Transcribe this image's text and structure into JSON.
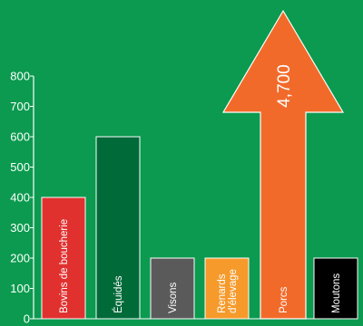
{
  "chart_data": {
    "type": "bar",
    "title": "",
    "xlabel": "",
    "ylabel": "",
    "ylim": [
      0,
      800
    ],
    "yticks": [
      "0",
      "100",
      "200",
      "300",
      "400",
      "500",
      "600",
      "700",
      "800"
    ],
    "categories": [
      {
        "label": [
          "Bovins de boucherie"
        ],
        "value": 400,
        "color": "#e0312f",
        "shape": "bar"
      },
      {
        "label": [
          "Équidés"
        ],
        "value": 600,
        "color": "#006a39",
        "shape": "bar"
      },
      {
        "label": [
          "Visons"
        ],
        "value": 200,
        "color": "#5a5a5a",
        "shape": "bar"
      },
      {
        "label": [
          "Renards",
          "d'élevage"
        ],
        "value": 200,
        "color": "#f59a2b",
        "shape": "bar"
      },
      {
        "label": [
          "Porcs"
        ],
        "value": 4700,
        "value_label": "4,700",
        "color": "#f26a2a",
        "shape": "arrow"
      },
      {
        "label": [
          "Moutons"
        ],
        "value": 200,
        "color": "#000000",
        "shape": "bar"
      }
    ]
  }
}
